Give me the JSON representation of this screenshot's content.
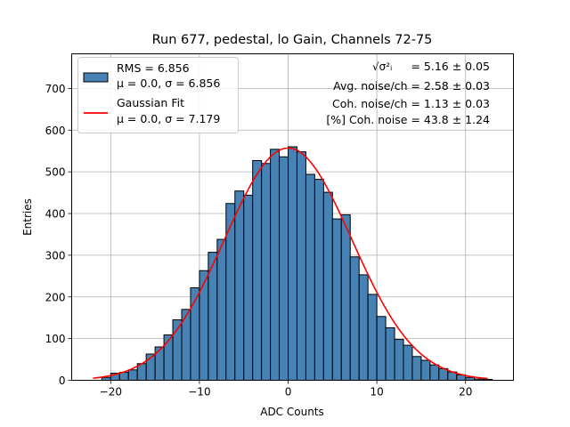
{
  "chart_data": {
    "type": "bar",
    "title": "Run 677, pedestal, lo Gain, Channels 72-75",
    "xlabel": "ADC Counts",
    "ylabel": "Entries",
    "xlim": [
      -24.4,
      25.4
    ],
    "ylim": [
      0,
      783
    ],
    "xticks": [
      -20,
      -10,
      0,
      10,
      20
    ],
    "xtick_labels": [
      "−20",
      "−10",
      "0",
      "10",
      "20"
    ],
    "yticks": [
      0,
      100,
      200,
      300,
      400,
      500,
      600,
      700
    ],
    "ytick_labels": [
      "0",
      "100",
      "200",
      "300",
      "400",
      "500",
      "600",
      "700"
    ],
    "grid": true,
    "bin_width": 1.0,
    "bin_start": -21,
    "values": [
      7,
      17,
      19,
      25,
      40,
      63,
      80,
      109,
      145,
      170,
      222,
      263,
      307,
      338,
      424,
      454,
      444,
      527,
      520,
      554,
      536,
      560,
      548,
      494,
      482,
      451,
      387,
      397,
      296,
      253,
      206,
      153,
      126,
      98,
      84,
      57,
      48,
      37,
      28,
      20,
      13,
      7,
      3,
      2
    ],
    "histogram_color": "#4682b4",
    "histogram_label": "RMS = 6.856",
    "histogram_sublabel": "μ = 0.0, σ = 6.856",
    "fit": {
      "name": "Gaussian Fit",
      "sublabel": "μ = 0.0, σ = 7.179",
      "color": "#ff0000",
      "mu": 0.0,
      "sigma": 7.179,
      "amplitude": 557,
      "x_range": [
        -22,
        22.5
      ]
    },
    "legend_position": "upper left",
    "annotations": [
      {
        "text": "= 5.16 ± 0.05",
        "prefix": "√σ²ᵢ"
      },
      {
        "text": "Avg. noise/ch = 2.58 ± 0.03"
      },
      {
        "text": "Coh. noise/ch = 1.13 ± 0.03"
      },
      {
        "text": "[%] Coh. noise = 43.8 ± 1.24"
      }
    ]
  }
}
